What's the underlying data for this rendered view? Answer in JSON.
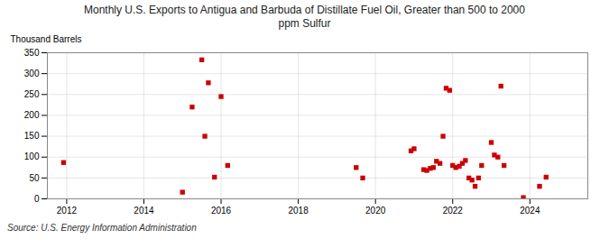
{
  "chart_data": {
    "type": "scatter",
    "title": "Monthly U.S. Exports to Antigua and Barbuda of Distillate Fuel Oil, Greater than 500 to 2000\nppm Sulfur",
    "ylabel": "Thousand Barrels",
    "source": "Source: U.S. Energy Information Administration",
    "color": "#cc0000",
    "marker": "square",
    "grid": true,
    "xlim": [
      2011.5,
      2025.5
    ],
    "ylim": [
      0,
      350
    ],
    "xticks": [
      2012,
      2014,
      2016,
      2018,
      2020,
      2022,
      2024
    ],
    "yticks": [
      0,
      50,
      100,
      150,
      200,
      250,
      300,
      350
    ],
    "x": [
      2011.92,
      2015.0,
      2015.25,
      2015.5,
      2015.58,
      2015.67,
      2015.83,
      2016.0,
      2016.17,
      2019.5,
      2019.67,
      2020.92,
      2021.0,
      2021.25,
      2021.33,
      2021.42,
      2021.5,
      2021.58,
      2021.67,
      2021.75,
      2021.83,
      2021.92,
      2022.0,
      2022.08,
      2022.17,
      2022.25,
      2022.33,
      2022.42,
      2022.5,
      2022.58,
      2022.67,
      2022.75,
      2023.0,
      2023.08,
      2023.17,
      2023.25,
      2023.33,
      2023.83,
      2024.25,
      2024.42
    ],
    "values": [
      87,
      16,
      220,
      333,
      150,
      278,
      52,
      245,
      80,
      75,
      50,
      115,
      120,
      70,
      68,
      73,
      75,
      90,
      85,
      150,
      265,
      260,
      80,
      75,
      78,
      85,
      92,
      50,
      45,
      30,
      50,
      80,
      135,
      105,
      100,
      270,
      80,
      3,
      30,
      52
    ]
  }
}
